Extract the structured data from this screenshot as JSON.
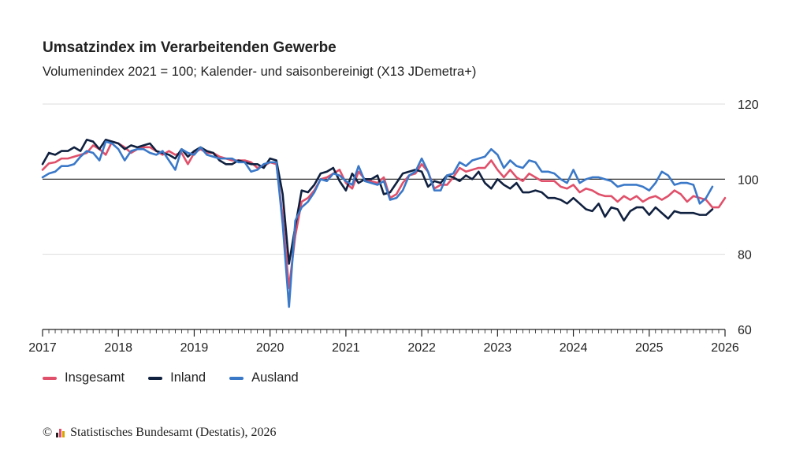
{
  "title": "Umsatzindex im Verarbeitenden Gewerbe",
  "subtitle": "Volumenindex 2021 = 100; Kalender- und saisonbereinigt (X13 JDemetra+)",
  "source": {
    "copyright_symbol": "©",
    "text": "Statistisches Bundesamt (Destatis), 2026"
  },
  "colors": {
    "insgesamt": "#e0506a",
    "inland": "#10203f",
    "ausland": "#3a78c8",
    "reference_line": "#222222",
    "grid": "#dddddd"
  },
  "chart_data": {
    "type": "line",
    "title": "Umsatzindex im Verarbeitenden Gewerbe",
    "subtitle": "Volumenindex 2021 = 100; Kalender- und saisonbereinigt (X13 JDemetra+)",
    "xlabel": "",
    "ylabel": "",
    "xlim": [
      "2017-01",
      "2026-01"
    ],
    "ylim": [
      60,
      120
    ],
    "y_ticks": [
      60,
      80,
      100,
      120
    ],
    "x_ticks": [
      "2017",
      "2018",
      "2019",
      "2020",
      "2021",
      "2022",
      "2023",
      "2024",
      "2025",
      "2026"
    ],
    "reference_line": 100,
    "grid": "horizontal",
    "legend_position": "bottom-left",
    "x_start": "2017-01",
    "frequency": "monthly",
    "series": [
      {
        "name": "Insgesamt",
        "color": "#e0506a",
        "values": [
          102.5,
          104.2,
          104.5,
          105.5,
          105.5,
          106.0,
          106.5,
          107.0,
          109.0,
          108.0,
          106.5,
          110.0,
          109.5,
          108.5,
          107.0,
          108.0,
          108.5,
          108.5,
          107.5,
          106.5,
          107.5,
          106.5,
          107.0,
          104.0,
          107.0,
          108.0,
          107.0,
          107.0,
          106.0,
          105.5,
          105.0,
          105.0,
          105.0,
          104.5,
          103.0,
          103.5,
          104.5,
          104.0,
          90.0,
          71.0,
          85.0,
          94.0,
          95.0,
          97.0,
          100.0,
          100.5,
          101.5,
          102.5,
          99.0,
          97.5,
          102.0,
          100.0,
          99.5,
          99.0,
          100.5,
          95.0,
          96.0,
          99.0,
          101.0,
          101.5,
          104.0,
          102.0,
          97.5,
          98.5,
          98.5,
          100.5,
          103.0,
          102.0,
          102.5,
          103.0,
          103.0,
          105.0,
          102.5,
          100.5,
          102.5,
          100.5,
          99.5,
          101.5,
          100.5,
          99.5,
          99.5,
          99.5,
          98.0,
          97.5,
          98.5,
          96.5,
          97.5,
          97.0,
          96.0,
          95.5,
          95.5,
          94.0,
          95.5,
          94.5,
          95.5,
          94.0,
          95.0,
          95.5,
          94.5,
          95.5,
          97.0,
          96.0,
          94.0,
          95.5,
          95.0,
          94.5,
          92.5,
          92.5,
          95.0
        ]
      },
      {
        "name": "Inland",
        "color": "#10203f",
        "values": [
          104.0,
          107.0,
          106.5,
          107.5,
          107.5,
          108.5,
          107.5,
          110.5,
          110.0,
          108.0,
          110.5,
          110.0,
          109.5,
          108.0,
          109.0,
          108.5,
          109.0,
          109.5,
          107.5,
          107.0,
          106.5,
          105.5,
          108.0,
          106.0,
          107.5,
          108.5,
          107.5,
          107.0,
          105.0,
          104.0,
          104.0,
          105.0,
          104.5,
          104.0,
          104.0,
          103.0,
          105.5,
          105.0,
          96.0,
          77.5,
          87.5,
          97.0,
          96.5,
          98.5,
          101.5,
          102.0,
          103.0,
          99.5,
          97.0,
          101.5,
          99.0,
          100.0,
          100.0,
          101.0,
          96.0,
          96.5,
          99.0,
          101.5,
          102.0,
          102.5,
          102.0,
          98.0,
          99.5,
          99.0,
          101.0,
          100.5,
          99.5,
          101.0,
          100.0,
          102.0,
          99.0,
          97.5,
          100.0,
          98.5,
          97.5,
          99.0,
          96.5,
          96.5,
          97.0,
          96.5,
          95.0,
          95.0,
          94.5,
          93.5,
          95.0,
          93.5,
          92.0,
          91.5,
          93.5,
          90.0,
          92.5,
          92.0,
          89.0,
          91.5,
          92.5,
          92.5,
          90.5,
          92.5,
          91.0,
          89.5,
          91.5,
          91.0,
          91.0,
          91.0,
          90.5,
          90.5,
          92.0
        ]
      },
      {
        "name": "Ausland",
        "color": "#3a78c8",
        "values": [
          100.5,
          101.5,
          102.0,
          103.5,
          103.5,
          104.0,
          106.0,
          107.5,
          107.0,
          105.0,
          110.0,
          109.5,
          108.0,
          105.0,
          107.5,
          108.0,
          108.0,
          107.0,
          106.5,
          107.5,
          105.0,
          102.5,
          108.0,
          107.0,
          106.5,
          108.5,
          106.5,
          106.0,
          105.5,
          105.5,
          105.5,
          104.5,
          104.5,
          102.0,
          102.5,
          104.0,
          104.5,
          104.5,
          88.0,
          66.0,
          89.0,
          92.5,
          94.0,
          96.5,
          100.0,
          99.5,
          101.5,
          101.0,
          99.5,
          98.5,
          103.5,
          99.5,
          99.0,
          98.5,
          99.5,
          94.5,
          95.0,
          97.0,
          101.0,
          102.0,
          105.5,
          102.0,
          97.0,
          97.0,
          101.0,
          101.5,
          104.5,
          103.5,
          105.0,
          105.5,
          106.0,
          108.0,
          106.5,
          103.0,
          105.0,
          103.5,
          103.0,
          105.0,
          104.5,
          102.0,
          102.0,
          101.5,
          100.0,
          99.0,
          102.5,
          99.0,
          100.0,
          100.5,
          100.5,
          100.0,
          99.5,
          98.0,
          98.5,
          98.5,
          98.5,
          98.0,
          97.0,
          99.0,
          102.0,
          101.0,
          98.5,
          99.0,
          99.0,
          98.5,
          93.5,
          95.0,
          98.0
        ]
      }
    ]
  }
}
